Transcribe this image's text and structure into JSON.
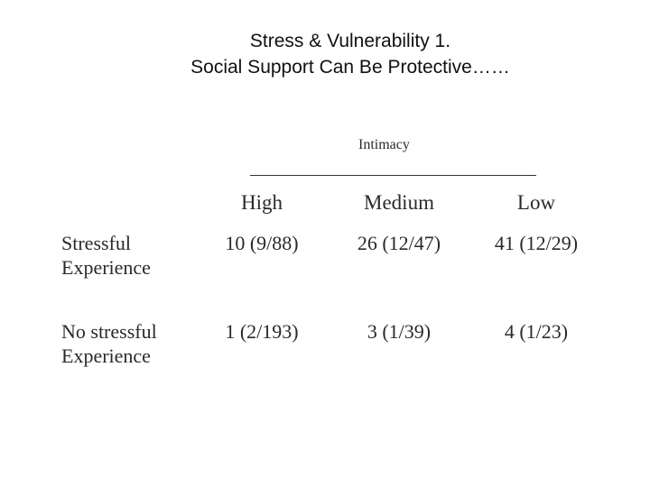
{
  "slide": {
    "title_line1": "Stress & Vulnerability 1.",
    "title_line2": "Social Support Can Be Protective……"
  },
  "table": {
    "caption": "Intimacy",
    "columns": [
      "High",
      "Medium",
      "Low"
    ],
    "rows": [
      {
        "label_line1": "Stressful",
        "label_line2": "Experience",
        "cells": [
          "10 (9/88)",
          "26 (12/47)",
          "41 (12/29)"
        ]
      },
      {
        "label_line1": "No stressful",
        "label_line2": "Experience",
        "cells": [
          "1 (2/193)",
          "3 (1/39)",
          "4 (1/23)"
        ]
      }
    ]
  }
}
